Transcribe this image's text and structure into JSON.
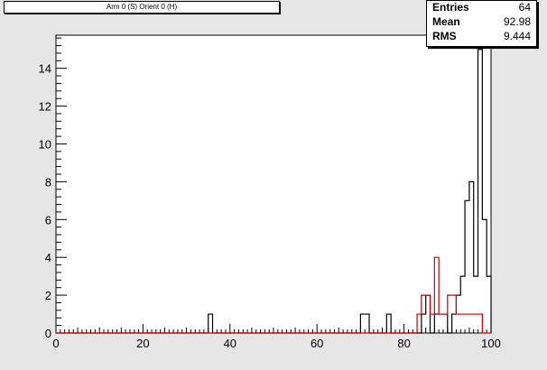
{
  "title": "Arm 0 (S) Orient 0 (H)",
  "stats": [
    {
      "key": "Entries",
      "value": "64"
    },
    {
      "key": "Mean",
      "value": "92.98"
    },
    {
      "key": "RMS",
      "value": "9.444"
    }
  ],
  "chart_data": {
    "type": "histogram",
    "xlim": [
      0,
      100
    ],
    "ylim": [
      0,
      15.75
    ],
    "bin_width": 1,
    "x_ticks": [
      0,
      20,
      40,
      60,
      80,
      100
    ],
    "y_ticks": [
      0,
      2,
      4,
      6,
      8,
      10,
      12,
      14
    ],
    "series": [
      {
        "color": "#000000",
        "bins": [
          {
            "x": 35,
            "y": 1
          },
          {
            "x": 70,
            "y": 1
          },
          {
            "x": 71,
            "y": 1
          },
          {
            "x": 76,
            "y": 1
          },
          {
            "x": 84,
            "y": 1
          },
          {
            "x": 85,
            "y": 2
          },
          {
            "x": 87,
            "y": 1
          },
          {
            "x": 88,
            "y": 1
          },
          {
            "x": 89,
            "y": 1
          },
          {
            "x": 91,
            "y": 1
          },
          {
            "x": 92,
            "y": 2
          },
          {
            "x": 93,
            "y": 3
          },
          {
            "x": 94,
            "y": 7
          },
          {
            "x": 95,
            "y": 8
          },
          {
            "x": 96,
            "y": 3
          },
          {
            "x": 97,
            "y": 15
          },
          {
            "x": 98,
            "y": 6
          },
          {
            "x": 99,
            "y": 3
          },
          {
            "x": 100,
            "y": 4
          }
        ]
      },
      {
        "color": "#cc0000",
        "bins": [
          {
            "x": 83,
            "y": 1
          },
          {
            "x": 84,
            "y": 2
          },
          {
            "x": 85,
            "y": 2
          },
          {
            "x": 86,
            "y": 1
          },
          {
            "x": 87,
            "y": 4
          },
          {
            "x": 88,
            "y": 1
          },
          {
            "x": 89,
            "y": 1
          },
          {
            "x": 90,
            "y": 2
          },
          {
            "x": 91,
            "y": 2
          },
          {
            "x": 92,
            "y": 1
          },
          {
            "x": 93,
            "y": 1
          },
          {
            "x": 94,
            "y": 1
          },
          {
            "x": 95,
            "y": 1
          },
          {
            "x": 96,
            "y": 1
          },
          {
            "x": 97,
            "y": 1
          }
        ]
      }
    ]
  }
}
